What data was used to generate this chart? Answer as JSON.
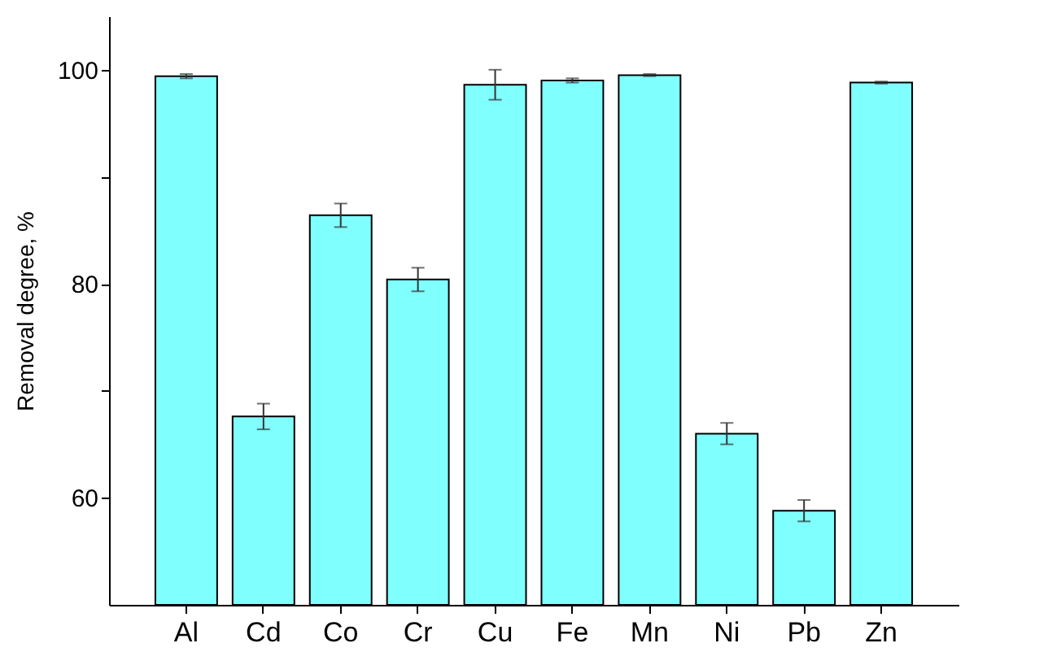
{
  "chart_data": {
    "type": "bar",
    "ylabel": "Removal degree, %",
    "categories": [
      "Al",
      "Cd",
      "Co",
      "Cr",
      "Cu",
      "Fe",
      "Mn",
      "Ni",
      "Pb",
      "Zn"
    ],
    "values": [
      99.4,
      67.6,
      86.4,
      80.4,
      98.6,
      99.0,
      99.5,
      66.0,
      58.8,
      98.8
    ],
    "errors": [
      0.2,
      1.2,
      1.1,
      1.1,
      1.4,
      0.2,
      0.1,
      1.0,
      1.0,
      0.1
    ],
    "color": "#80ffff",
    "ylim": [
      50,
      105
    ],
    "yticks": [
      60,
      {
        "value": 70,
        "label": null
      },
      80,
      {
        "value": 90,
        "label": null
      },
      100
    ],
    "grid": false
  }
}
